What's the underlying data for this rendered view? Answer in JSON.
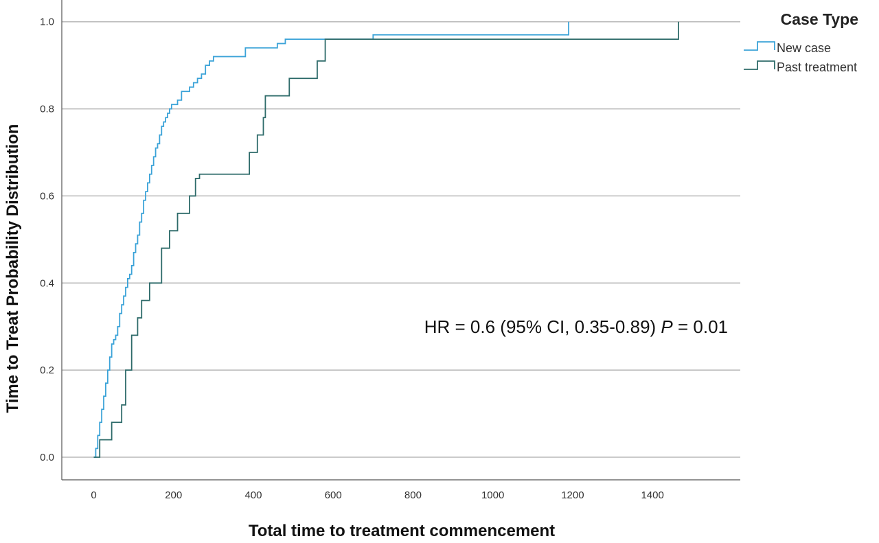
{
  "chart_data": {
    "type": "line",
    "subtype": "step",
    "title": "",
    "xlabel": "Total time to treatment commencement",
    "ylabel": "Time to Treat Probability Distribution",
    "xlim": [
      -80,
      1620
    ],
    "ylim": [
      -0.052,
      1.05
    ],
    "x_ticks": [
      0,
      200,
      400,
      600,
      800,
      1000,
      1200,
      1400
    ],
    "x_tick_labels": [
      "0",
      "200",
      "400",
      "600",
      "800",
      "1000",
      "1200",
      "1400"
    ],
    "y_ticks": [
      0.0,
      0.2,
      0.4,
      0.6,
      0.8,
      1.0
    ],
    "y_tick_labels": [
      "0.0",
      "0.2",
      "0.4",
      "0.6",
      "0.8",
      "1.0"
    ],
    "grid": "horizontal",
    "legend": {
      "title": "Case Type",
      "position": "top-right",
      "entries": [
        "New case",
        "Past treatment"
      ]
    },
    "annotation": {
      "prefix": "HR = 0.6 (95% CI, 0.35-0.89) ",
      "italic": "P",
      "suffix": " = 0.01"
    },
    "series": [
      {
        "name": "New case",
        "color": "#3ba3d8",
        "x": [
          0,
          5,
          10,
          15,
          20,
          25,
          30,
          35,
          40,
          45,
          50,
          55,
          60,
          65,
          70,
          75,
          80,
          85,
          90,
          95,
          100,
          105,
          110,
          115,
          120,
          125,
          130,
          135,
          140,
          145,
          150,
          155,
          160,
          165,
          170,
          175,
          180,
          185,
          190,
          195,
          200,
          205,
          210,
          220,
          240,
          250,
          260,
          270,
          280,
          290,
          300,
          320,
          380,
          460,
          480,
          700,
          1190
        ],
        "y": [
          0.0,
          0.02,
          0.05,
          0.08,
          0.11,
          0.14,
          0.17,
          0.2,
          0.23,
          0.26,
          0.27,
          0.28,
          0.3,
          0.33,
          0.35,
          0.37,
          0.39,
          0.41,
          0.42,
          0.44,
          0.47,
          0.49,
          0.51,
          0.54,
          0.56,
          0.59,
          0.61,
          0.63,
          0.65,
          0.67,
          0.69,
          0.71,
          0.72,
          0.74,
          0.76,
          0.77,
          0.78,
          0.79,
          0.8,
          0.81,
          0.81,
          0.81,
          0.82,
          0.84,
          0.85,
          0.86,
          0.87,
          0.88,
          0.9,
          0.91,
          0.92,
          0.92,
          0.94,
          0.95,
          0.96,
          0.97,
          1.0
        ]
      },
      {
        "name": "Past treatment",
        "color": "#2e6b6a",
        "x": [
          0,
          15,
          45,
          70,
          80,
          95,
          110,
          120,
          140,
          170,
          190,
          210,
          240,
          255,
          265,
          390,
          410,
          425,
          430,
          490,
          560,
          580,
          1465
        ],
        "y": [
          0.0,
          0.04,
          0.08,
          0.12,
          0.2,
          0.28,
          0.32,
          0.36,
          0.4,
          0.48,
          0.52,
          0.56,
          0.6,
          0.64,
          0.65,
          0.7,
          0.74,
          0.78,
          0.83,
          0.87,
          0.91,
          0.96,
          1.0
        ]
      }
    ]
  }
}
